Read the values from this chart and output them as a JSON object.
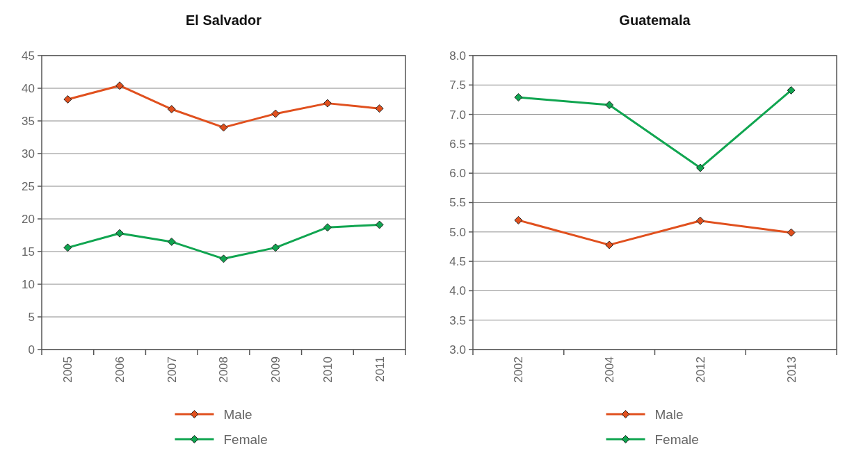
{
  "chart_data": [
    {
      "type": "line",
      "title": "El Salvador",
      "categories": [
        "2005",
        "2006",
        "2007",
        "2008",
        "2009",
        "2010",
        "2011"
      ],
      "ylim": [
        0,
        45
      ],
      "yticks": [
        0,
        5,
        10,
        15,
        20,
        25,
        30,
        35,
        40,
        45
      ],
      "grid": "y",
      "legend": "bottom",
      "marker": "diamond",
      "line_style": "solid",
      "series": [
        {
          "name": "Male",
          "color": "#e0501e",
          "values": [
            38.3,
            40.4,
            36.8,
            34.0,
            36.1,
            37.7,
            36.9
          ]
        },
        {
          "name": "Female",
          "color": "#10a550",
          "values": [
            15.6,
            17.8,
            16.5,
            13.9,
            15.6,
            18.7,
            19.1
          ]
        }
      ]
    },
    {
      "type": "line",
      "title": "Guatemala",
      "categories": [
        "2002",
        "2004",
        "2012",
        "2013"
      ],
      "ylim": [
        3.0,
        8.0
      ],
      "yticks": [
        {
          "value": 3,
          "label": "3.0"
        },
        3.5,
        {
          "value": 4,
          "label": "4.0"
        },
        4.5,
        {
          "value": 5,
          "label": "5.0"
        },
        5.5,
        {
          "value": 6,
          "label": "6.0"
        },
        6.5,
        {
          "value": 7,
          "label": "7.0"
        },
        7.5,
        {
          "value": 8,
          "label": "8.0"
        }
      ],
      "grid": "y",
      "legend": "bottom",
      "marker": "diamond",
      "line_style": "solid",
      "series": [
        {
          "name": "Male",
          "color": "#e0501e",
          "values": [
            5.2,
            4.78,
            5.19,
            4.99
          ]
        },
        {
          "name": "Female",
          "color": "#10a550",
          "values": [
            7.29,
            7.16,
            6.09,
            7.41
          ]
        }
      ]
    }
  ]
}
